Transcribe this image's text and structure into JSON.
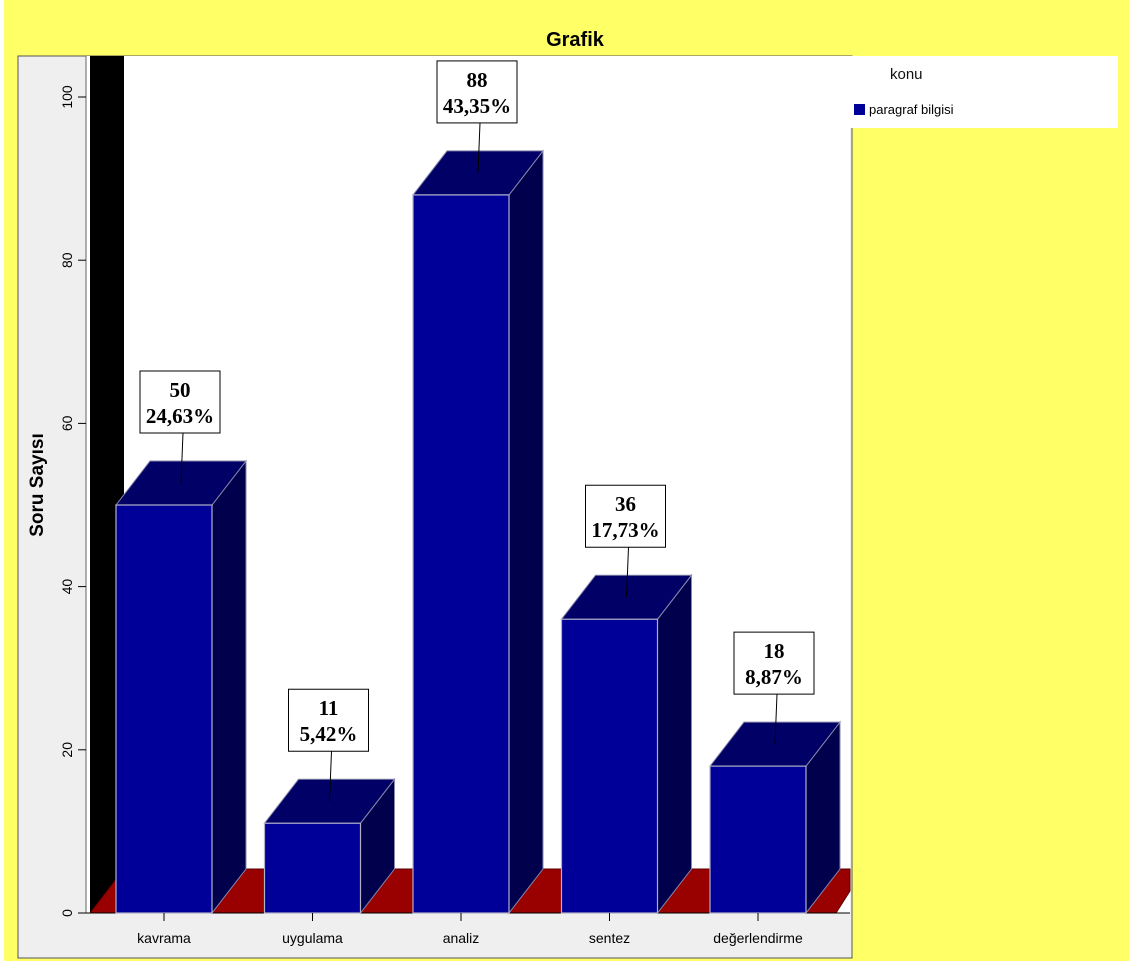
{
  "chart_data": {
    "type": "bar",
    "title": "Grafik",
    "ylabel": "Soru Sayısı",
    "xlabel": "",
    "categories": [
      "kavrama",
      "uygulama",
      "analiz",
      "sentez",
      "değerlendirme"
    ],
    "series": [
      {
        "name": "paragraf bilgisi",
        "values": [
          50,
          11,
          88,
          36,
          18
        ],
        "percent_labels": [
          "24,63%",
          "5,42%",
          "43,35%",
          "17,73%",
          "8,87%"
        ]
      }
    ],
    "ylim": [
      0,
      105
    ],
    "yticks": [
      0,
      20,
      40,
      60,
      80,
      100
    ],
    "legend": {
      "title": "konu",
      "placement": "right"
    },
    "colors": {
      "bar_front": "#000099",
      "bar_top": "#000066",
      "bar_side": "#00004d",
      "floor": "#990000",
      "back_wall": "#000000",
      "plot_bg": "#ffffff",
      "chart_bg": "#ffff66",
      "axis_bg": "#efefef"
    },
    "style": "3d-bar"
  }
}
